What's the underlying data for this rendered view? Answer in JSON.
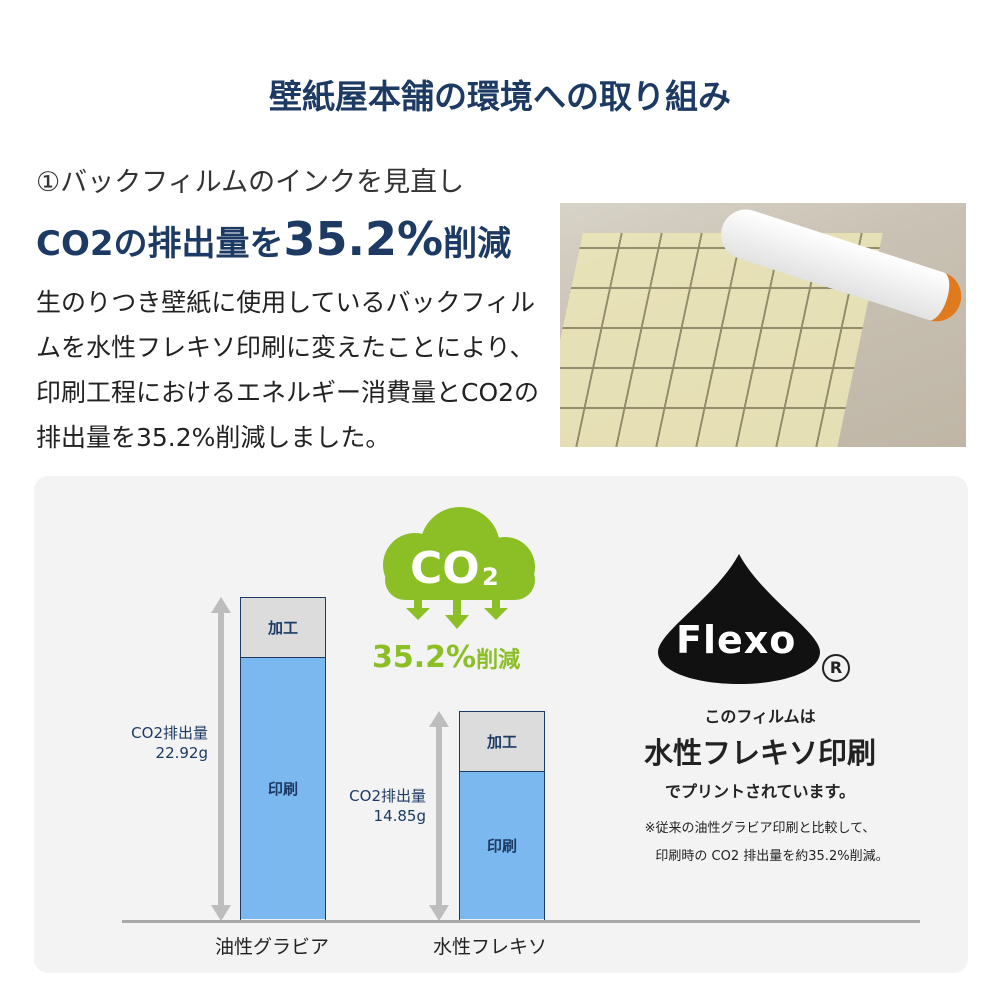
{
  "title": "壁紙屋本舗の環境への取り組み",
  "section": {
    "subtitle": "①バックフィルムのインクを見直し",
    "headline_pre": "CO2の排出量を",
    "headline_value": "35.2%",
    "headline_post": "削減",
    "body": "生のりつき壁紙に使用しているバックフィルムを水性フレキソ印刷に変えたことにより、印刷工程におけるエネルギー消費量とCO2の排出量を35.2%削減しました。"
  },
  "cloud": {
    "label": "CO",
    "sub": "2",
    "color": "#8cbf26"
  },
  "reduction": {
    "value": "35.2%",
    "suffix": "削減"
  },
  "chart_data": {
    "type": "bar",
    "stacked": true,
    "categories": [
      "油性グラビア",
      "水性フレキソ"
    ],
    "segment_labels": [
      "印刷",
      "加工"
    ],
    "totals": [
      22.92,
      14.85
    ],
    "value_labels": [
      [
        "CO2排出量",
        "22.92g"
      ],
      [
        "CO2排出量",
        "14.85g"
      ]
    ],
    "colors": {
      "print": "#7bb8f0",
      "process": "#dcdcdc",
      "outline": "#1c3a63"
    }
  },
  "flexo": {
    "logo_text": "Flexo",
    "registered": "R",
    "line1": "このフィルムは",
    "line2": "水性フレキソ印刷",
    "line3": "でプリントされています。",
    "note1": "※従来の油性グラビア印刷と比較して、",
    "note2": "印刷時の CO2 排出量を約35.2%削減。"
  }
}
